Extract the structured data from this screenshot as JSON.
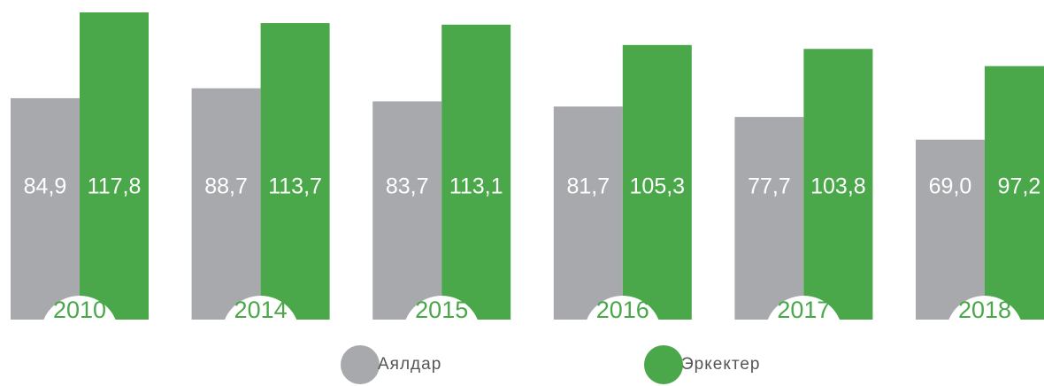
{
  "chart_data": {
    "type": "bar",
    "categories": [
      "2010",
      "2014",
      "2015",
      "2016",
      "2017",
      "2018"
    ],
    "series": [
      {
        "name": "Аялдар",
        "color": "#a7a9ac",
        "values": [
          84.9,
          88.7,
          83.7,
          81.7,
          77.7,
          69.0
        ],
        "value_labels": [
          "84,9",
          "88,7",
          "83,7",
          "81,7",
          "77,7",
          "69,0"
        ]
      },
      {
        "name": "Эркектер",
        "color": "#4aa84a",
        "values": [
          117.8,
          113.7,
          113.1,
          105.3,
          103.8,
          97.2
        ],
        "value_labels": [
          "117,8",
          "113,7",
          "113,1",
          "105,3",
          "103,8",
          "97,2"
        ]
      }
    ]
  }
}
